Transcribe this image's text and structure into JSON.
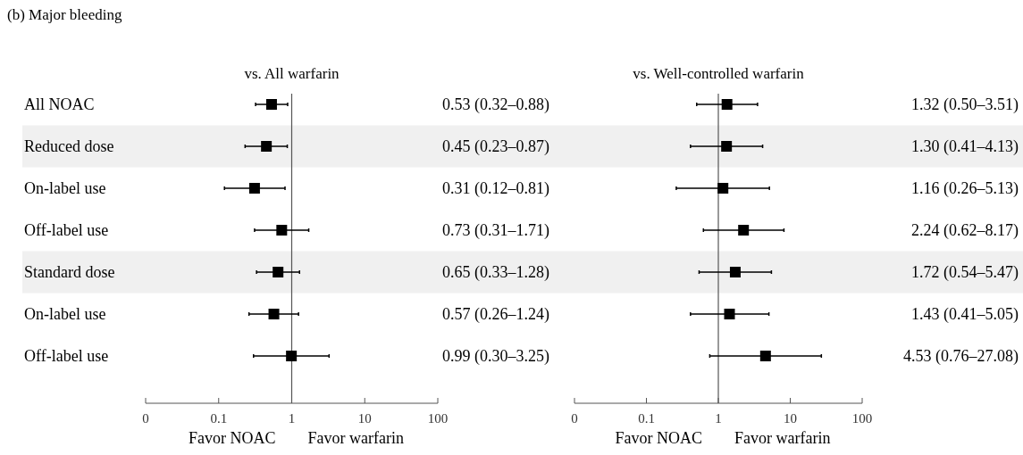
{
  "chart_data": [
    {
      "type": "scatter",
      "orientation": "horizontal",
      "title": "vs. All warfarin",
      "categories": [
        "All NOAC",
        "Reduced dose",
        "On-label use",
        "Off-label use",
        "Standard dose",
        "On-label use",
        "Off-label use"
      ],
      "series": [
        {
          "color": "#000000",
          "values": [
            0.53,
            0.45,
            0.31,
            0.73,
            0.65,
            0.57,
            0.99
          ],
          "errors": [
            [
              0.32,
              0.88
            ],
            [
              0.23,
              0.87
            ],
            [
              0.12,
              0.81
            ],
            [
              0.31,
              1.71
            ],
            [
              0.33,
              1.28
            ],
            [
              0.26,
              1.24
            ],
            [
              0.3,
              3.25
            ]
          ],
          "value_labels": [
            "0.53 (0.32–0.88)",
            "0.45 (0.23–0.87)",
            "0.31 (0.12–0.81)",
            "0.73 (0.31–1.71)",
            "0.65 (0.33–1.28)",
            "0.57 (0.26–1.24)",
            "0.99 (0.30–3.25)"
          ]
        }
      ],
      "log": "x",
      "xlim": [
        0.01,
        100
      ],
      "xticks": [
        {
          "value": 0.01,
          "label": "0"
        },
        0.1,
        1,
        10,
        100
      ],
      "marker": "square",
      "grid": false,
      "ref_lines": [
        {
          "axis": "x",
          "value": 1,
          "color": "#555555"
        }
      ],
      "bands": [
        {
          "axis": "y",
          "from": "Reduced dose",
          "to": "Reduced dose",
          "color": "#f0f0f0"
        },
        {
          "axis": "y",
          "from": "Standard dose",
          "to": "Standard dose",
          "color": "#f0f0f0"
        }
      ],
      "annotations": [
        "(b) Major bleeding",
        "Favor NOAC",
        "Favor warfarin"
      ]
    },
    {
      "type": "scatter",
      "orientation": "horizontal",
      "title": "vs. Well-controlled warfarin",
      "categories": [
        "All NOAC",
        "Reduced dose",
        "On-label use",
        "Off-label use",
        "Standard dose",
        "On-label use",
        "Off-label use"
      ],
      "tick_labels": "x",
      "series": [
        {
          "color": "#000000",
          "values": [
            1.32,
            1.3,
            1.16,
            2.24,
            1.72,
            1.43,
            4.53
          ],
          "errors": [
            [
              0.5,
              3.51
            ],
            [
              0.41,
              4.13
            ],
            [
              0.26,
              5.13
            ],
            [
              0.62,
              8.17
            ],
            [
              0.54,
              5.47
            ],
            [
              0.41,
              5.05
            ],
            [
              0.76,
              27.08
            ]
          ],
          "value_labels": [
            "1.32 (0.50–3.51)",
            "1.30 (0.41–4.13)",
            "1.16 (0.26–5.13)",
            "2.24 (0.62–8.17)",
            "1.72 (0.54–5.47)",
            "1.43 (0.41–5.05)",
            "4.53 (0.76–27.08)"
          ]
        }
      ],
      "log": "x",
      "xlim": [
        0.01,
        100
      ],
      "xticks": [
        {
          "value": 0.01,
          "label": "0"
        },
        0.1,
        1,
        10,
        100
      ],
      "marker": "square",
      "grid": false,
      "ref_lines": [
        {
          "axis": "x",
          "value": 1,
          "color": "#555555"
        }
      ],
      "bands": [
        {
          "axis": "y",
          "from": "Reduced dose",
          "to": "Reduced dose",
          "color": "#f0f0f0"
        },
        {
          "axis": "y",
          "from": "Standard dose",
          "to": "Standard dose",
          "color": "#f0f0f0"
        }
      ],
      "annotations": [
        "Favor NOAC",
        "Favor warfarin"
      ]
    }
  ]
}
